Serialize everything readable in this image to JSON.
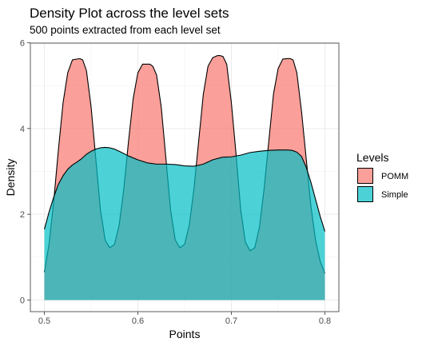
{
  "chart_data": {
    "type": "area",
    "title": "Density Plot across the level sets",
    "subtitle": "500 points extracted from each level set",
    "xlabel": "Points",
    "ylabel": "Density",
    "xlim": [
      0.5,
      0.8
    ],
    "ylim": [
      0,
      6
    ],
    "x_ticks": [
      "0.5",
      "0.6",
      "0.7",
      "0.8"
    ],
    "y_ticks": [
      "0",
      "2",
      "4",
      "6"
    ],
    "grid": true,
    "legend": {
      "title": "Levels",
      "position": "right",
      "entries": [
        "POMM",
        "Simple"
      ]
    },
    "series": [
      {
        "name": "POMM",
        "color": "#F8766D",
        "x": [
          0.5,
          0.505,
          0.51,
          0.515,
          0.52,
          0.525,
          0.53,
          0.535,
          0.538,
          0.541,
          0.545,
          0.55,
          0.555,
          0.56,
          0.565,
          0.57,
          0.575,
          0.58,
          0.585,
          0.59,
          0.595,
          0.6,
          0.605,
          0.61,
          0.613,
          0.616,
          0.62,
          0.625,
          0.63,
          0.635,
          0.64,
          0.645,
          0.65,
          0.655,
          0.66,
          0.665,
          0.67,
          0.675,
          0.68,
          0.685,
          0.688,
          0.691,
          0.695,
          0.7,
          0.705,
          0.71,
          0.715,
          0.72,
          0.725,
          0.73,
          0.735,
          0.74,
          0.745,
          0.75,
          0.755,
          0.76,
          0.763,
          0.766,
          0.77,
          0.775,
          0.78,
          0.785,
          0.79,
          0.795,
          0.8
        ],
        "y": [
          0.65,
          1.3,
          2.3,
          3.5,
          4.6,
          5.3,
          5.6,
          5.62,
          5.63,
          5.6,
          5.35,
          4.5,
          3.3,
          2.1,
          1.4,
          1.22,
          1.3,
          1.75,
          2.6,
          3.7,
          4.7,
          5.3,
          5.5,
          5.5,
          5.5,
          5.45,
          5.25,
          4.5,
          3.3,
          2.1,
          1.4,
          1.22,
          1.3,
          1.75,
          2.6,
          3.7,
          4.8,
          5.45,
          5.65,
          5.7,
          5.7,
          5.68,
          5.5,
          4.6,
          3.4,
          2.1,
          1.35,
          1.15,
          1.22,
          1.7,
          2.6,
          3.7,
          4.8,
          5.4,
          5.62,
          5.63,
          5.63,
          5.6,
          5.3,
          4.4,
          3.3,
          2.2,
          1.4,
          0.9,
          0.62
        ]
      },
      {
        "name": "Simple",
        "color": "#00BFC4",
        "x": [
          0.5,
          0.505,
          0.51,
          0.515,
          0.52,
          0.525,
          0.53,
          0.535,
          0.54,
          0.545,
          0.55,
          0.555,
          0.56,
          0.565,
          0.57,
          0.575,
          0.58,
          0.59,
          0.6,
          0.61,
          0.62,
          0.63,
          0.64,
          0.65,
          0.66,
          0.67,
          0.68,
          0.69,
          0.7,
          0.71,
          0.72,
          0.73,
          0.74,
          0.75,
          0.76,
          0.765,
          0.77,
          0.775,
          0.78,
          0.785,
          0.79,
          0.795,
          0.8
        ],
        "y": [
          1.65,
          2.05,
          2.4,
          2.7,
          2.9,
          3.05,
          3.15,
          3.22,
          3.3,
          3.4,
          3.47,
          3.52,
          3.55,
          3.56,
          3.55,
          3.52,
          3.47,
          3.36,
          3.27,
          3.2,
          3.17,
          3.17,
          3.16,
          3.13,
          3.12,
          3.17,
          3.27,
          3.33,
          3.34,
          3.38,
          3.44,
          3.47,
          3.49,
          3.5,
          3.5,
          3.49,
          3.45,
          3.35,
          3.1,
          2.75,
          2.35,
          1.95,
          1.6
        ]
      }
    ]
  }
}
